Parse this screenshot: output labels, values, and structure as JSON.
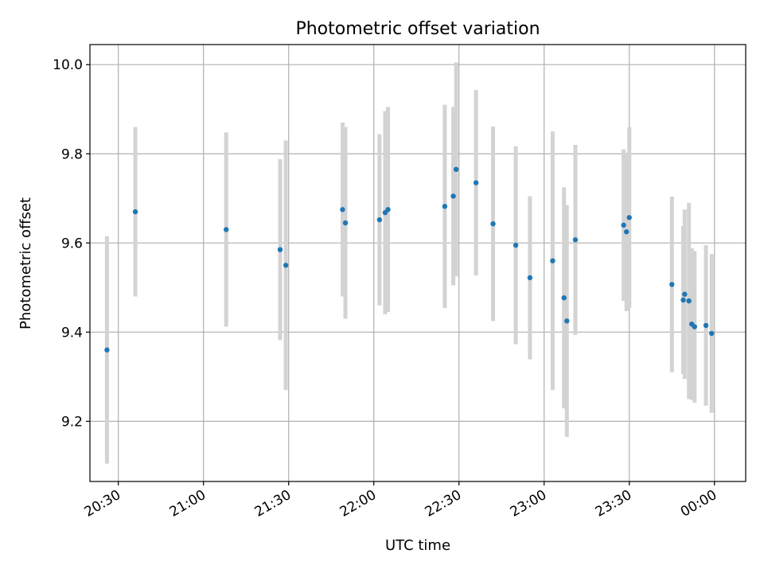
{
  "chart_data": {
    "type": "scatter",
    "title": "Photometric offset variation",
    "xlabel": "UTC time",
    "ylabel": "Photometric offset",
    "x_unit": "time",
    "xlim": [
      "20:20",
      "00:11"
    ],
    "ylim": [
      9.065,
      10.045
    ],
    "xticks": [
      "20:30",
      "21:00",
      "21:30",
      "22:00",
      "22:30",
      "23:00",
      "23:30",
      "00:00"
    ],
    "yticks": [
      "9.2",
      "9.4",
      "9.6",
      "9.8",
      "10.0"
    ],
    "grid": true,
    "colors": {
      "point": "#1f77b4",
      "errorbar": "#d3d3d3",
      "grid": "#b0b0b0"
    },
    "points": [
      {
        "t": "20:26",
        "y": 9.36,
        "err": 0.255
      },
      {
        "t": "20:36",
        "y": 9.67,
        "err": 0.19
      },
      {
        "t": "21:08",
        "y": 9.63,
        "err": 0.218
      },
      {
        "t": "21:27",
        "y": 9.585,
        "err": 0.203
      },
      {
        "t": "21:29",
        "y": 9.55,
        "err": 0.28
      },
      {
        "t": "21:49",
        "y": 9.675,
        "err": 0.195
      },
      {
        "t": "21:50",
        "y": 9.645,
        "err": 0.215
      },
      {
        "t": "22:02",
        "y": 9.652,
        "err": 0.192
      },
      {
        "t": "22:04",
        "y": 9.668,
        "err": 0.228
      },
      {
        "t": "22:05",
        "y": 9.675,
        "err": 0.23
      },
      {
        "t": "22:25",
        "y": 9.682,
        "err": 0.228
      },
      {
        "t": "22:28",
        "y": 9.705,
        "err": 0.2
      },
      {
        "t": "22:29",
        "y": 9.765,
        "err": 0.24
      },
      {
        "t": "22:36",
        "y": 9.735,
        "err": 0.208
      },
      {
        "t": "22:42",
        "y": 9.643,
        "err": 0.218
      },
      {
        "t": "22:50",
        "y": 9.595,
        "err": 0.222
      },
      {
        "t": "22:55",
        "y": 9.522,
        "err": 0.183
      },
      {
        "t": "23:03",
        "y": 9.56,
        "err": 0.29
      },
      {
        "t": "23:07",
        "y": 9.477,
        "err": 0.248
      },
      {
        "t": "23:08",
        "y": 9.425,
        "err": 0.26
      },
      {
        "t": "23:11",
        "y": 9.607,
        "err": 0.213
      },
      {
        "t": "23:28",
        "y": 9.64,
        "err": 0.17
      },
      {
        "t": "23:29",
        "y": 9.625,
        "err": 0.178
      },
      {
        "t": "23:30",
        "y": 9.657,
        "err": 0.203
      },
      {
        "t": "23:45",
        "y": 9.507,
        "err": 0.197
      },
      {
        "t": "23:49",
        "y": 9.472,
        "err": 0.166
      },
      {
        "t": "23:49:30",
        "y": 9.485,
        "err": 0.19
      },
      {
        "t": "23:51",
        "y": 9.47,
        "err": 0.22
      },
      {
        "t": "23:52",
        "y": 9.418,
        "err": 0.17
      },
      {
        "t": "23:53",
        "y": 9.412,
        "err": 0.17
      },
      {
        "t": "23:57",
        "y": 9.415,
        "err": 0.18
      },
      {
        "t": "23:59",
        "y": 9.397,
        "err": 0.178
      }
    ]
  }
}
